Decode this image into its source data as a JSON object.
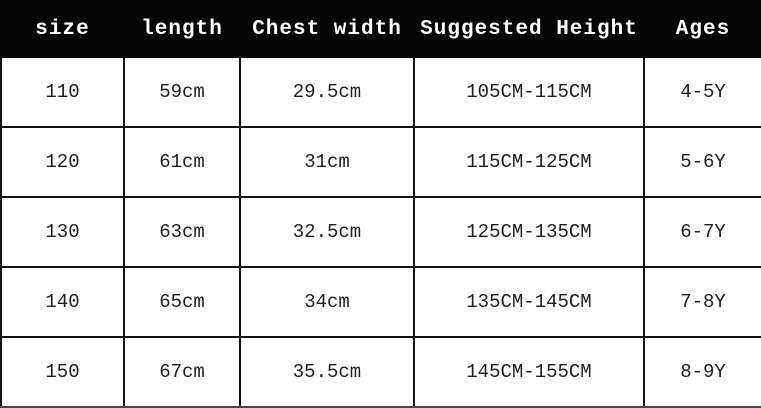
{
  "chart_data": {
    "type": "table",
    "title": "",
    "columns": [
      "size",
      "length",
      "Chest width",
      "Suggested Height",
      "Ages"
    ],
    "rows": [
      [
        "110",
        "59cm",
        "29.5cm",
        "105CM-115CM",
        "4-5Y"
      ],
      [
        "120",
        "61cm",
        "31cm",
        "115CM-125CM",
        "5-6Y"
      ],
      [
        "130",
        "63cm",
        "32.5cm",
        "125CM-135CM",
        "6-7Y"
      ],
      [
        "140",
        "65cm",
        "34cm",
        "135CM-145CM",
        "7-8Y"
      ],
      [
        "150",
        "67cm",
        "35.5cm",
        "145CM-155CM",
        "8-9Y"
      ]
    ],
    "layout": {
      "header_bg": "#050505",
      "header_text_color": "#ffffff",
      "body_text_color": "#1e1e1e",
      "border_color": "#111111",
      "bottom_border_color": "#4a4a4a"
    }
  }
}
